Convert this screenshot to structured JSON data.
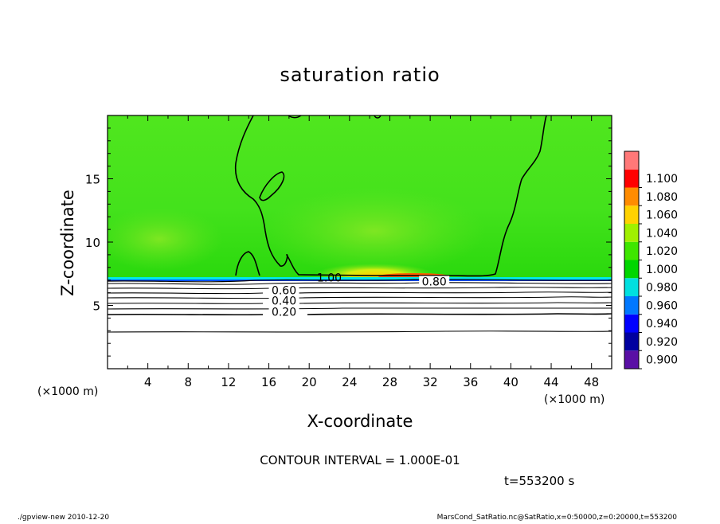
{
  "chart_data": {
    "type": "heatmap",
    "title": "saturation ratio",
    "xlabel": "X-coordinate",
    "ylabel": "Z-coordinate",
    "x_unit": "(×1000 m)",
    "z_unit": "(×1000 m)",
    "xlim": [
      0,
      50
    ],
    "ylim": [
      0,
      20
    ],
    "x_ticks": [
      4,
      8,
      12,
      16,
      20,
      24,
      28,
      32,
      36,
      40,
      44,
      48
    ],
    "y_ticks": [
      5,
      10,
      15
    ],
    "colorbar": {
      "levels": [
        0.9,
        0.92,
        0.94,
        0.96,
        0.98,
        1.0,
        1.02,
        1.04,
        1.06,
        1.08,
        1.1
      ],
      "labels": [
        "0.900",
        "0.920",
        "0.940",
        "0.960",
        "0.980",
        "1.000",
        "1.020",
        "1.040",
        "1.060",
        "1.080",
        "1.100"
      ],
      "colors": [
        "#5a0fa5",
        "#0000a0",
        "#0000ff",
        "#0078ff",
        "#00e0e0",
        "#00d600",
        "#3ee600",
        "#a0f000",
        "#ffd200",
        "#ff8c00",
        "#ff0000",
        "#ff7878"
      ]
    },
    "contour_interval_text": "CONTOUR INTERVAL = 1.000E-01",
    "contour_labels": [
      {
        "text": "1.00",
        "x": 22.0,
        "z": 7.0
      },
      {
        "text": "0.80",
        "x": 32.4,
        "z": 6.7
      },
      {
        "text": "0.60",
        "x": 17.5,
        "z": 6.0
      },
      {
        "text": "0.40",
        "x": 17.5,
        "z": 5.2
      },
      {
        "text": "0.20",
        "x": 17.5,
        "z": 4.3
      }
    ],
    "time_text": "t=553200 s",
    "footer_left": "./gpview-new   2010-12-20",
    "footer_right": "MarsCond_SatRatio.nc@SatRatio,x=0:50000,z=0:20000,t=553200"
  }
}
